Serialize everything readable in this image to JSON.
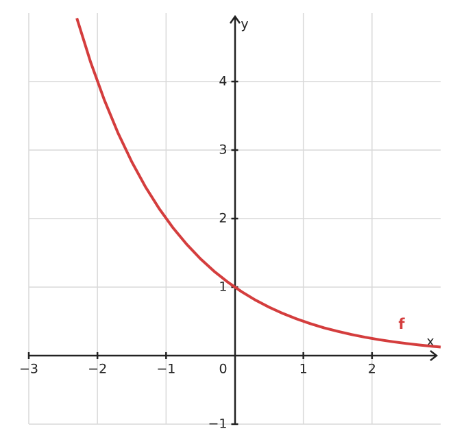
{
  "chart_data": {
    "type": "line",
    "color": "#d43d3d",
    "line_label": "f",
    "x_label": "x",
    "y_label": "y",
    "x": [
      -2.3,
      -2.1,
      -1.9,
      -1.7,
      -1.5,
      -1.3,
      -1.1,
      -0.9,
      -0.7,
      -0.5,
      -0.3,
      -0.1,
      0.1,
      0.3,
      0.5,
      0.7,
      0.9,
      1.1,
      1.3,
      1.5,
      1.7,
      1.9,
      2.1,
      2.3,
      2.5,
      2.7,
      2.9,
      3.0
    ],
    "values": [
      4.925,
      4.287,
      3.732,
      3.249,
      2.828,
      2.462,
      2.144,
      1.866,
      1.625,
      1.414,
      1.231,
      1.072,
      0.933,
      0.812,
      0.707,
      0.616,
      0.536,
      0.467,
      0.406,
      0.354,
      0.308,
      0.268,
      0.233,
      0.203,
      0.177,
      0.154,
      0.134,
      0.125
    ],
    "xlim": [
      -3,
      3
    ],
    "ylim": [
      -1,
      5
    ],
    "xticks": [
      {
        "value": -3,
        "label": "−3"
      },
      {
        "value": -2,
        "label": "−2"
      },
      {
        "value": -1,
        "label": "−1"
      },
      0,
      1,
      2
    ],
    "yticks": [
      {
        "value": -1,
        "label": "−1"
      },
      1,
      2,
      3,
      4
    ],
    "grid": true
  }
}
